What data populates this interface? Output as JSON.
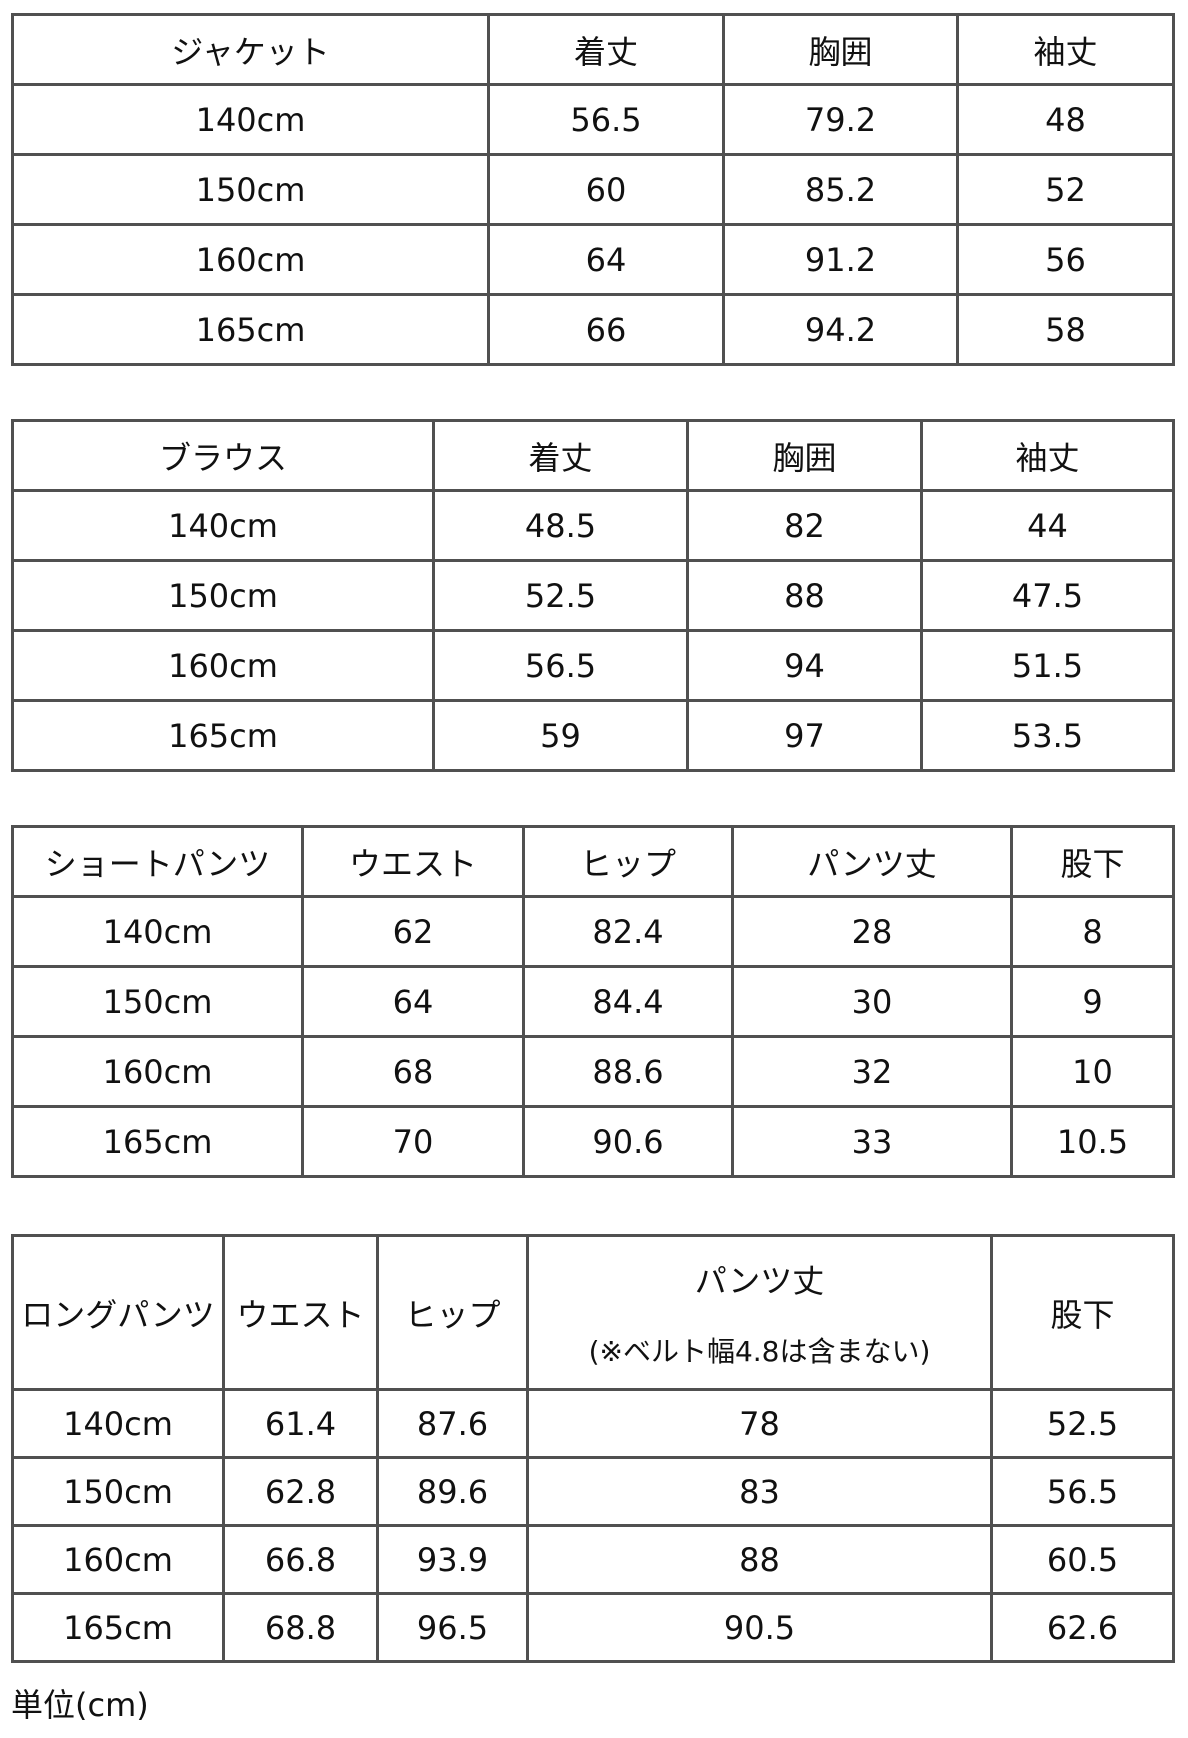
{
  "tables": [
    {
      "headers": [
        "ジャケット",
        "着丈",
        "胸囲",
        "袖丈"
      ],
      "rows": [
        [
          "140cm",
          "56.5",
          "79.2",
          "48"
        ],
        [
          "150cm",
          "60",
          "85.2",
          "52"
        ],
        [
          "160cm",
          "64",
          "91.2",
          "56"
        ],
        [
          "165cm",
          "66",
          "94.2",
          "58"
        ]
      ]
    },
    {
      "headers": [
        "ブラウス",
        "着丈",
        "胸囲",
        "袖丈"
      ],
      "rows": [
        [
          "140cm",
          "48.5",
          "82",
          "44"
        ],
        [
          "150cm",
          "52.5",
          "88",
          "47.5"
        ],
        [
          "160cm",
          "56.5",
          "94",
          "51.5"
        ],
        [
          "165cm",
          "59",
          "97",
          "53.5"
        ]
      ]
    },
    {
      "headers": [
        "ショートパンツ",
        "ウエスト",
        "ヒップ",
        "パンツ丈",
        "股下"
      ],
      "rows": [
        [
          "140cm",
          "62",
          "82.4",
          "28",
          "8"
        ],
        [
          "150cm",
          "64",
          "84.4",
          "30",
          "9"
        ],
        [
          "160cm",
          "68",
          "88.6",
          "32",
          "10"
        ],
        [
          "165cm",
          "70",
          "90.6",
          "33",
          "10.5"
        ]
      ]
    },
    {
      "headers": [
        "ロングパンツ",
        "ウエスト",
        "ヒップ",
        "パンツ丈",
        "股下"
      ],
      "header_note": "(※ベルト幅4.8は含まない)",
      "rows": [
        [
          "140cm",
          "61.4",
          "87.6",
          "78",
          "52.5"
        ],
        [
          "150cm",
          "62.8",
          "89.6",
          "83",
          "56.5"
        ],
        [
          "160cm",
          "66.8",
          "93.9",
          "88",
          "60.5"
        ],
        [
          "165cm",
          "68.8",
          "96.5",
          "90.5",
          "62.6"
        ]
      ]
    }
  ],
  "unit_note": "単位(cm)"
}
